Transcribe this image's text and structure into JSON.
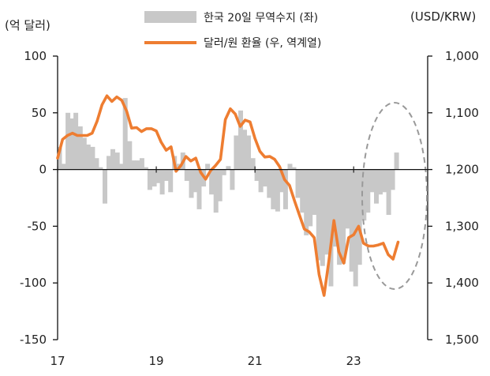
{
  "chart_data": {
    "type": "bar+line",
    "title": "",
    "left_axis": {
      "unit": "(억 달러)",
      "ticks": [
        "100",
        "50",
        "0",
        "-50",
        "-100",
        "-150"
      ],
      "ylim": [
        -150,
        100
      ]
    },
    "right_axis": {
      "unit": "(USD/KRW)",
      "ticks": [
        "1,000",
        "1,100",
        "1,200",
        "1,300",
        "1,400",
        "1,500"
      ],
      "ylim": [
        1000,
        1500
      ],
      "inverted": true
    },
    "x_axis": {
      "ticks": [
        "17",
        "19",
        "21",
        "23"
      ],
      "xlim": [
        2017.0,
        2024.5
      ]
    },
    "legend": [
      {
        "label": "한국 20일 무역수지 (좌)",
        "color": "#c8c8c8",
        "kind": "bar"
      },
      {
        "label": "달러/원 환율 (우, 역계열)",
        "color": "#ee7d31",
        "kind": "line"
      }
    ],
    "series": [
      {
        "name": "한국 20일 무역수지 (좌)",
        "axis": "left",
        "kind": "bar",
        "color": "#c8c8c8",
        "x": [
          2017.04,
          2017.12,
          2017.21,
          2017.29,
          2017.37,
          2017.46,
          2017.54,
          2017.62,
          2017.71,
          2017.79,
          2017.87,
          2017.96,
          2018.04,
          2018.12,
          2018.21,
          2018.29,
          2018.37,
          2018.46,
          2018.54,
          2018.62,
          2018.71,
          2018.79,
          2018.87,
          2018.96,
          2019.04,
          2019.12,
          2019.21,
          2019.29,
          2019.37,
          2019.46,
          2019.54,
          2019.62,
          2019.71,
          2019.79,
          2019.87,
          2019.96,
          2020.04,
          2020.12,
          2020.21,
          2020.29,
          2020.37,
          2020.46,
          2020.54,
          2020.62,
          2020.71,
          2020.79,
          2020.87,
          2020.96,
          2021.04,
          2021.12,
          2021.21,
          2021.29,
          2021.37,
          2021.46,
          2021.54,
          2021.62,
          2021.71,
          2021.79,
          2021.87,
          2021.96,
          2022.04,
          2022.12,
          2022.21,
          2022.29,
          2022.37,
          2022.46,
          2022.54,
          2022.62,
          2022.71,
          2022.79,
          2022.87,
          2022.96,
          2023.04,
          2023.12,
          2023.21,
          2023.29,
          2023.37,
          2023.46,
          2023.54,
          2023.62,
          2023.71,
          2023.79,
          2023.87
        ],
        "values": [
          20,
          5,
          50,
          45,
          50,
          38,
          28,
          22,
          20,
          10,
          2,
          -30,
          12,
          18,
          15,
          5,
          63,
          25,
          8,
          8,
          10,
          2,
          -18,
          -15,
          -12,
          -22,
          -10,
          -20,
          12,
          5,
          15,
          -10,
          -25,
          -20,
          -35,
          -15,
          5,
          -22,
          -38,
          -28,
          -5,
          3,
          -18,
          30,
          52,
          35,
          30,
          10,
          -10,
          -20,
          -15,
          -25,
          -35,
          -37,
          -20,
          -35,
          5,
          2,
          -25,
          -38,
          -58,
          -50,
          -40,
          -80,
          -85,
          -75,
          -103,
          -68,
          -84,
          -83,
          -52,
          -90,
          -103,
          -84,
          -45,
          -38,
          -20,
          -30,
          -22,
          -20,
          -40,
          -18,
          15
        ]
      },
      {
        "name": "달러/원 환율 (우, 역계열)",
        "axis": "right",
        "kind": "line",
        "color": "#ee7d31",
        "x": [
          2017.0,
          2017.1,
          2017.2,
          2017.3,
          2017.4,
          2017.5,
          2017.6,
          2017.7,
          2017.8,
          2017.9,
          2018.0,
          2018.1,
          2018.2,
          2018.3,
          2018.4,
          2018.5,
          2018.6,
          2018.7,
          2018.8,
          2018.9,
          2019.0,
          2019.1,
          2019.2,
          2019.3,
          2019.4,
          2019.5,
          2019.6,
          2019.7,
          2019.8,
          2019.9,
          2020.0,
          2020.1,
          2020.2,
          2020.3,
          2020.4,
          2020.5,
          2020.6,
          2020.7,
          2020.8,
          2020.9,
          2021.0,
          2021.1,
          2021.2,
          2021.3,
          2021.4,
          2021.5,
          2021.6,
          2021.7,
          2021.8,
          2021.9,
          2022.0,
          2022.1,
          2022.2,
          2022.3,
          2022.4,
          2022.5,
          2022.6,
          2022.7,
          2022.8,
          2022.9,
          2023.0,
          2023.1,
          2023.2,
          2023.3,
          2023.4,
          2023.5,
          2023.6,
          2023.7,
          2023.8,
          2023.9
        ],
        "values": [
          1180,
          1147,
          1140,
          1136,
          1140,
          1140,
          1140,
          1136,
          1115,
          1086,
          1070,
          1080,
          1072,
          1078,
          1097,
          1127,
          1126,
          1133,
          1128,
          1128,
          1132,
          1152,
          1166,
          1160,
          1203,
          1193,
          1177,
          1185,
          1180,
          1205,
          1217,
          1202,
          1193,
          1182,
          1112,
          1093,
          1102,
          1124,
          1113,
          1116,
          1145,
          1168,
          1178,
          1177,
          1182,
          1195,
          1218,
          1228,
          1255,
          1280,
          1305,
          1310,
          1320,
          1385,
          1422,
          1360,
          1290,
          1345,
          1365,
          1320,
          1315,
          1300,
          1330,
          1335,
          1335,
          1333,
          1330,
          1350,
          1358,
          1328
        ]
      }
    ],
    "annotation": {
      "shape": "dashed-ellipse",
      "note": ""
    }
  }
}
